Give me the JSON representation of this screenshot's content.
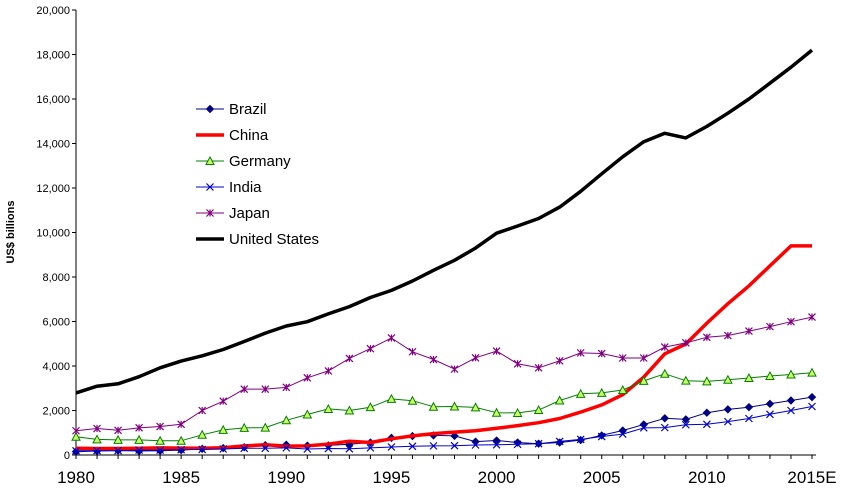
{
  "chart_data": {
    "type": "line",
    "title": "",
    "xlabel": "",
    "ylabel": "US$ billions",
    "xlim": [
      1980,
      2015
    ],
    "ylim": [
      0,
      20000
    ],
    "yticks": [
      0,
      2000,
      4000,
      6000,
      8000,
      10000,
      12000,
      14000,
      16000,
      18000,
      20000
    ],
    "yticklabels": [
      "0",
      "2,000",
      "4,000",
      "6,000",
      "8,000",
      "10,000",
      "12,000",
      "14,000",
      "16,000",
      "18,000",
      "20,000"
    ],
    "xticks": [
      1980,
      1985,
      1990,
      1995,
      2000,
      2005,
      2010,
      2015
    ],
    "xticklabels": [
      "1980",
      "1985",
      "1990",
      "1995",
      "2000",
      "2005",
      "2010",
      "2015E"
    ],
    "grid": false,
    "legend_position": "upper-left",
    "x": [
      1980,
      1981,
      1982,
      1983,
      1984,
      1985,
      1986,
      1987,
      1988,
      1989,
      1990,
      1991,
      1992,
      1993,
      1994,
      1995,
      1996,
      1997,
      1998,
      1999,
      2000,
      2001,
      2002,
      2003,
      2004,
      2005,
      2006,
      2007,
      2008,
      2009,
      2010,
      2011,
      2012,
      2013,
      2014,
      2015
    ],
    "series": [
      {
        "name": "Brazil",
        "color": "#000080",
        "marker": "diamond",
        "values": [
          150,
          180,
          200,
          180,
          190,
          220,
          280,
          310,
          350,
          440,
          460,
          420,
          430,
          480,
          560,
          770,
          850,
          880,
          860,
          600,
          650,
          560,
          510,
          560,
          670,
          880,
          1100,
          1370,
          1650,
          1600,
          1900,
          2050,
          2150,
          2300,
          2450,
          2600
        ]
      },
      {
        "name": "China",
        "color": "#ff0000",
        "marker": "none",
        "values": [
          300,
          290,
          290,
          300,
          320,
          310,
          300,
          330,
          410,
          460,
          400,
          410,
          490,
          620,
          560,
          730,
          860,
          960,
          1030,
          1090,
          1200,
          1320,
          1450,
          1640,
          1930,
          2250,
          2710,
          3500,
          4550,
          4990,
          5930,
          6800,
          7600,
          8500,
          9400,
          9400
        ],
        "_note": "last point 2015E"
      },
      {
        "name": "Germany",
        "color": "#008000",
        "marker": "triangle",
        "values": [
          820,
          700,
          680,
          680,
          640,
          640,
          910,
          1130,
          1220,
          1230,
          1560,
          1820,
          2070,
          2000,
          2150,
          2520,
          2440,
          2170,
          2180,
          2140,
          1900,
          1890,
          2020,
          2450,
          2750,
          2790,
          2920,
          3330,
          3650,
          3340,
          3310,
          3380,
          3460,
          3550,
          3620,
          3700
        ]
      },
      {
        "name": "India",
        "color": "#0000cc",
        "marker": "x",
        "values": [
          190,
          200,
          200,
          220,
          220,
          240,
          250,
          270,
          300,
          300,
          320,
          270,
          290,
          280,
          320,
          360,
          390,
          410,
          420,
          450,
          460,
          480,
          510,
          610,
          700,
          830,
          940,
          1220,
          1230,
          1360,
          1380,
          1500,
          1640,
          1830,
          2000,
          2180
        ]
      },
      {
        "name": "Japan",
        "color": "#800080",
        "marker": "star",
        "values": [
          1090,
          1190,
          1110,
          1220,
          1280,
          1380,
          2000,
          2420,
          2960,
          2960,
          3040,
          3470,
          3780,
          4340,
          4780,
          5260,
          4640,
          4290,
          3860,
          4370,
          4670,
          4100,
          3920,
          4230,
          4590,
          4560,
          4360,
          4360,
          4850,
          5040,
          5290,
          5370,
          5570,
          5770,
          5990,
          6200
        ]
      },
      {
        "name": "United States",
        "color": "#000000",
        "marker": "none",
        "values": [
          2790,
          3090,
          3200,
          3520,
          3920,
          4220,
          4460,
          4740,
          5100,
          5480,
          5800,
          5990,
          6340,
          6670,
          7080,
          7400,
          7820,
          8300,
          8750,
          9300,
          9970,
          10290,
          10630,
          11140,
          11850,
          12640,
          13400,
          14080,
          14460,
          14250,
          14770,
          15360,
          16000,
          16710,
          17430,
          18200
        ]
      }
    ]
  }
}
